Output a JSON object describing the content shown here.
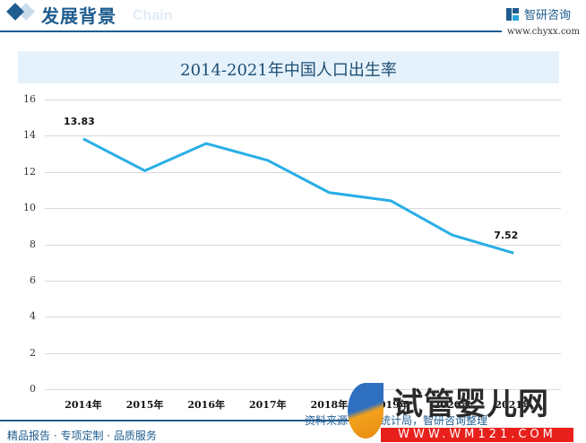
{
  "header": {
    "section_title": "发展背景",
    "section_subtitle": "Chain",
    "brand_name": "智研咨询",
    "brand_url": "www.chyxx.com"
  },
  "chart_data": {
    "type": "line",
    "title": "2014-2021年中国人口出生率",
    "categories": [
      "2014年",
      "2015年",
      "2016年",
      "2017年",
      "2018年",
      "2019年",
      "2020年",
      "2021年"
    ],
    "series": [
      {
        "name": "人口出生率",
        "values": [
          13.83,
          12.07,
          13.57,
          12.64,
          10.86,
          10.41,
          8.52,
          7.52
        ],
        "color": "#29aee6"
      }
    ],
    "data_labels": [
      {
        "index": 0,
        "text": "13.83"
      },
      {
        "index": 7,
        "text": "7.52"
      }
    ],
    "xlabel": "",
    "ylabel": "",
    "ylim": [
      0,
      16
    ],
    "yticks": [
      "0",
      "2",
      "4",
      "6",
      "8",
      "10",
      "12",
      "14",
      "16"
    ],
    "grid": true,
    "legend": "none"
  },
  "footer": {
    "slogan": "精品报告 · 专项定制 · 品质服务",
    "source": "资料来源：国家统计局，智研咨询整理"
  },
  "overlay_watermark": {
    "text": "试管婴儿网",
    "url": "WWW.WM121.COM"
  }
}
